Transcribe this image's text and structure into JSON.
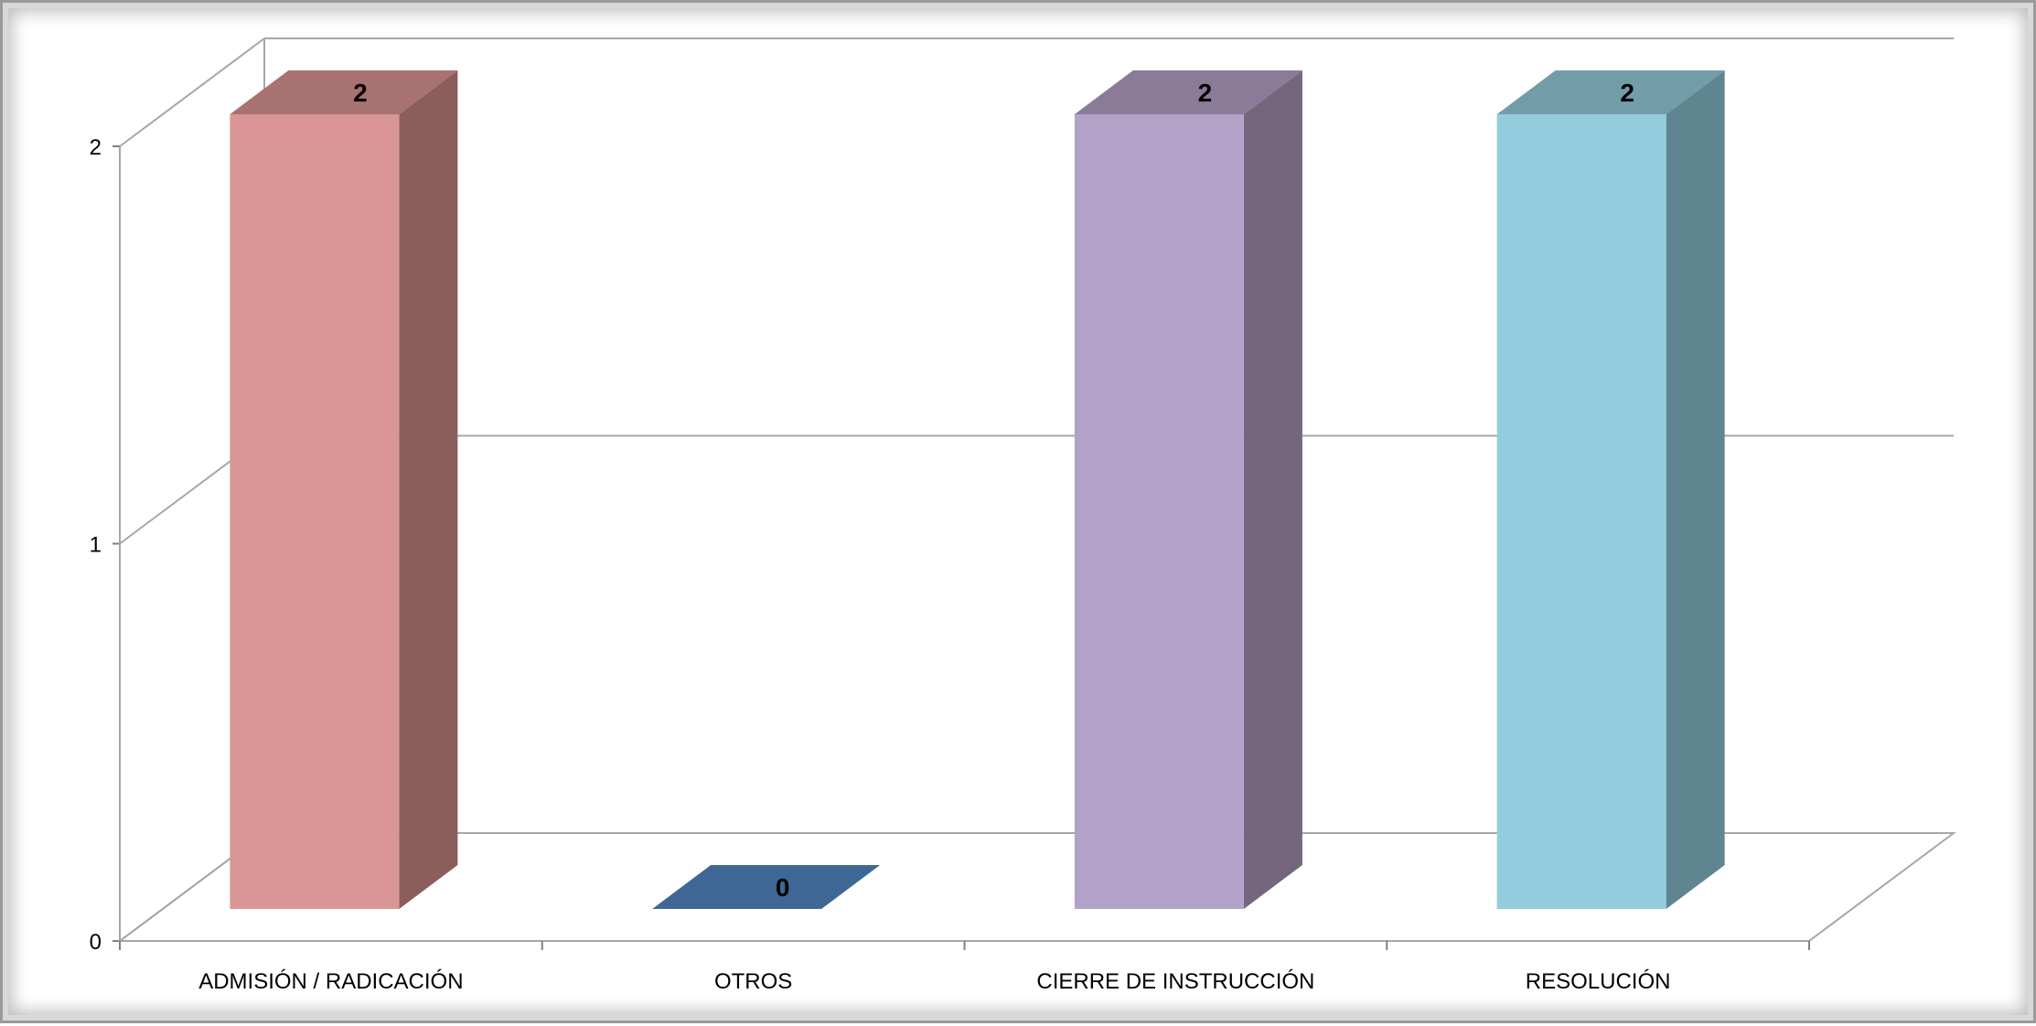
{
  "chart_data": {
    "type": "bar",
    "style": "3d-column",
    "categories": [
      "ADMISIÓN / RADICACIÓN",
      "OTROS",
      "CIERRE DE INSTRUCCIÓN",
      "RESOLUCIÓN"
    ],
    "values": [
      2,
      0,
      2,
      2
    ],
    "data_labels": [
      "2",
      "0",
      "2",
      "2"
    ],
    "ylim": [
      0,
      2
    ],
    "yticks": [
      "0",
      "1",
      "2"
    ],
    "grid": true,
    "legend": "none",
    "colors": {
      "front": [
        "#d99694",
        "#3f6796",
        "#b3a2c7",
        "#93cddd"
      ],
      "side": [
        "#8b5e5c",
        "#2c4a6e",
        "#73667d",
        "#5f8590"
      ],
      "top": [
        "#a87270",
        "#3f6796",
        "#8a7b99",
        "#729ca8"
      ]
    }
  }
}
